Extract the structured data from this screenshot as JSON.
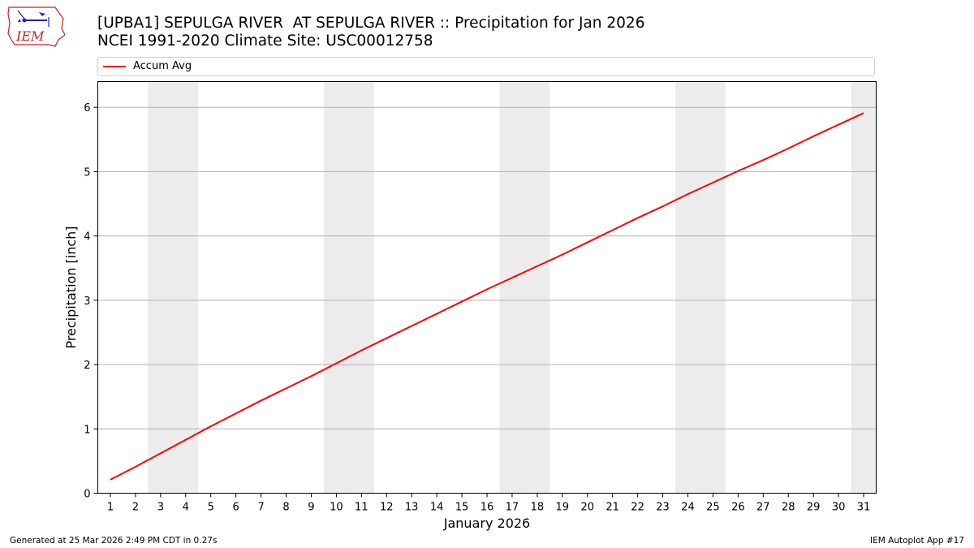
{
  "header": {
    "title_line1": "[UPBA1] SEPULGA RIVER  AT SEPULGA RIVER :: Precipitation for Jan 2026",
    "title_line2": "NCEI 1991-2020 Climate Site: USC00012758"
  },
  "logo": {
    "text": "IEM",
    "icon": "iem-logo-icon"
  },
  "footer": {
    "generated": "Generated at 25 Mar 2026 2:49 PM CDT in 0.27s",
    "app": "IEM Autoplot App #17"
  },
  "colors": {
    "line": "#ff0000",
    "weekend_band": "#ececec",
    "grid": "#b0b0b0",
    "logo_red": "#cc2222",
    "logo_blue": "#2222cc"
  },
  "chart_data": {
    "type": "line",
    "title": "[UPBA1] SEPULGA RIVER  AT SEPULGA RIVER :: Precipitation for Jan 2026",
    "subtitle": "NCEI 1991-2020 Climate Site: USC00012758",
    "xlabel": "January 2026",
    "ylabel": "Precipitation [inch]",
    "xlim": [
      0.5,
      31.5
    ],
    "ylim": [
      0,
      6.4
    ],
    "x_ticks": [
      1,
      2,
      3,
      4,
      5,
      6,
      7,
      8,
      9,
      10,
      11,
      12,
      13,
      14,
      15,
      16,
      17,
      18,
      19,
      20,
      21,
      22,
      23,
      24,
      25,
      26,
      27,
      28,
      29,
      30,
      31
    ],
    "y_ticks": [
      0,
      1,
      2,
      3,
      4,
      5,
      6
    ],
    "grid": "horizontal",
    "legend_position": "top",
    "weekend_bands": [
      [
        3,
        4
      ],
      [
        10,
        11
      ],
      [
        17,
        18
      ],
      [
        24,
        25
      ],
      [
        31,
        31
      ]
    ],
    "series": [
      {
        "name": "Accum Avg",
        "x": [
          1,
          2,
          3,
          4,
          5,
          6,
          7,
          8,
          9,
          10,
          11,
          12,
          13,
          14,
          15,
          16,
          17,
          18,
          19,
          20,
          21,
          22,
          23,
          24,
          25,
          26,
          27,
          28,
          29,
          30,
          31
        ],
        "values": [
          0.21,
          0.41,
          0.62,
          0.83,
          1.04,
          1.24,
          1.44,
          1.63,
          1.82,
          2.02,
          2.22,
          2.41,
          2.6,
          2.79,
          2.98,
          3.17,
          3.35,
          3.53,
          3.71,
          3.9,
          4.09,
          4.28,
          4.46,
          4.65,
          4.83,
          5.01,
          5.18,
          5.36,
          5.55,
          5.73,
          5.91
        ]
      }
    ]
  }
}
